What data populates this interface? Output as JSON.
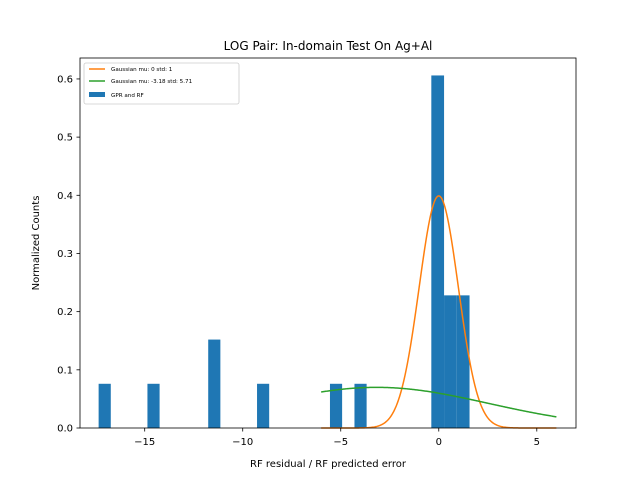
{
  "chart_data": {
    "type": "bar",
    "title": "LOG Pair: In-domain Test On Ag+Al",
    "xlabel": "RF residual / RF predicted error",
    "ylabel": "Normalized Counts",
    "xlim": [
      -18.3,
      7.0
    ],
    "ylim": [
      0,
      0.636
    ],
    "xticks": [
      -15,
      -10,
      -5,
      0,
      5
    ],
    "xtick_labels": [
      "−15",
      "−10",
      "−5",
      "0",
      "5"
    ],
    "yticks": [
      0.0,
      0.1,
      0.2,
      0.3,
      0.4,
      0.5,
      0.6
    ],
    "ytick_labels": [
      "0.0",
      "0.1",
      "0.2",
      "0.3",
      "0.4",
      "0.5",
      "0.6"
    ],
    "grid": false,
    "legend_position": "top-left",
    "histogram": {
      "name": "GPR and RF",
      "color": "#1f77b4",
      "bins": [
        {
          "x0": -17.35,
          "x1": -16.73,
          "value": 0.076
        },
        {
          "x0": -14.86,
          "x1": -14.24,
          "value": 0.076
        },
        {
          "x0": -11.76,
          "x1": -11.14,
          "value": 0.152
        },
        {
          "x0": -9.27,
          "x1": -8.65,
          "value": 0.076
        },
        {
          "x0": -5.55,
          "x1": -4.93,
          "value": 0.076
        },
        {
          "x0": -4.3,
          "x1": -3.68,
          "value": 0.076
        },
        {
          "x0": -0.38,
          "x1": 0.27,
          "value": 0.606
        },
        {
          "x0": 0.27,
          "x1": 0.92,
          "value": 0.228
        },
        {
          "x0": 0.92,
          "x1": 1.57,
          "value": 0.228
        }
      ]
    },
    "series": [
      {
        "name": "Gaussian mu: 0 std: 1",
        "type": "line",
        "color": "#ff7f0e",
        "mu": 0,
        "std": 1,
        "x_range": [
          -6,
          6
        ]
      },
      {
        "name": "Gaussian mu: -3.18 std: 5.71",
        "type": "line",
        "color": "#2ca02c",
        "mu": -3.18,
        "std": 5.71,
        "x_range": [
          -6,
          6
        ]
      }
    ],
    "legend": [
      {
        "label": "Gaussian mu: 0 std: 1",
        "kind": "line",
        "color": "#ff7f0e"
      },
      {
        "label": "Gaussian mu: -3.18 std: 5.71",
        "kind": "line",
        "color": "#2ca02c"
      },
      {
        "label": "GPR and RF",
        "kind": "patch",
        "color": "#1f77b4"
      }
    ]
  }
}
